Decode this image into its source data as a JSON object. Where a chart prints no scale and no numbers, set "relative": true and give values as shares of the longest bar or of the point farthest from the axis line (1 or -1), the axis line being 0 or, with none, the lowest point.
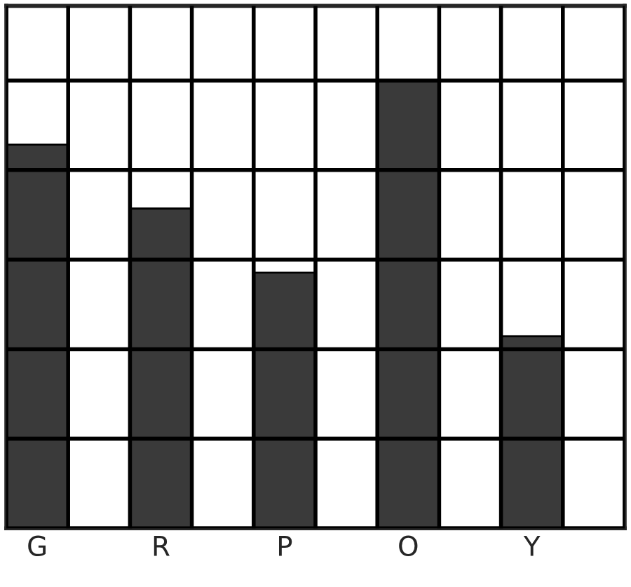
{
  "chart_data": {
    "type": "bar",
    "categories": [
      "G",
      "R",
      "P",
      "O",
      "Y"
    ],
    "values": [
      0.857,
      0.714,
      0.571,
      1,
      0.429
    ],
    "color": "#3a3a3a",
    "relative": true,
    "grid": true
  }
}
